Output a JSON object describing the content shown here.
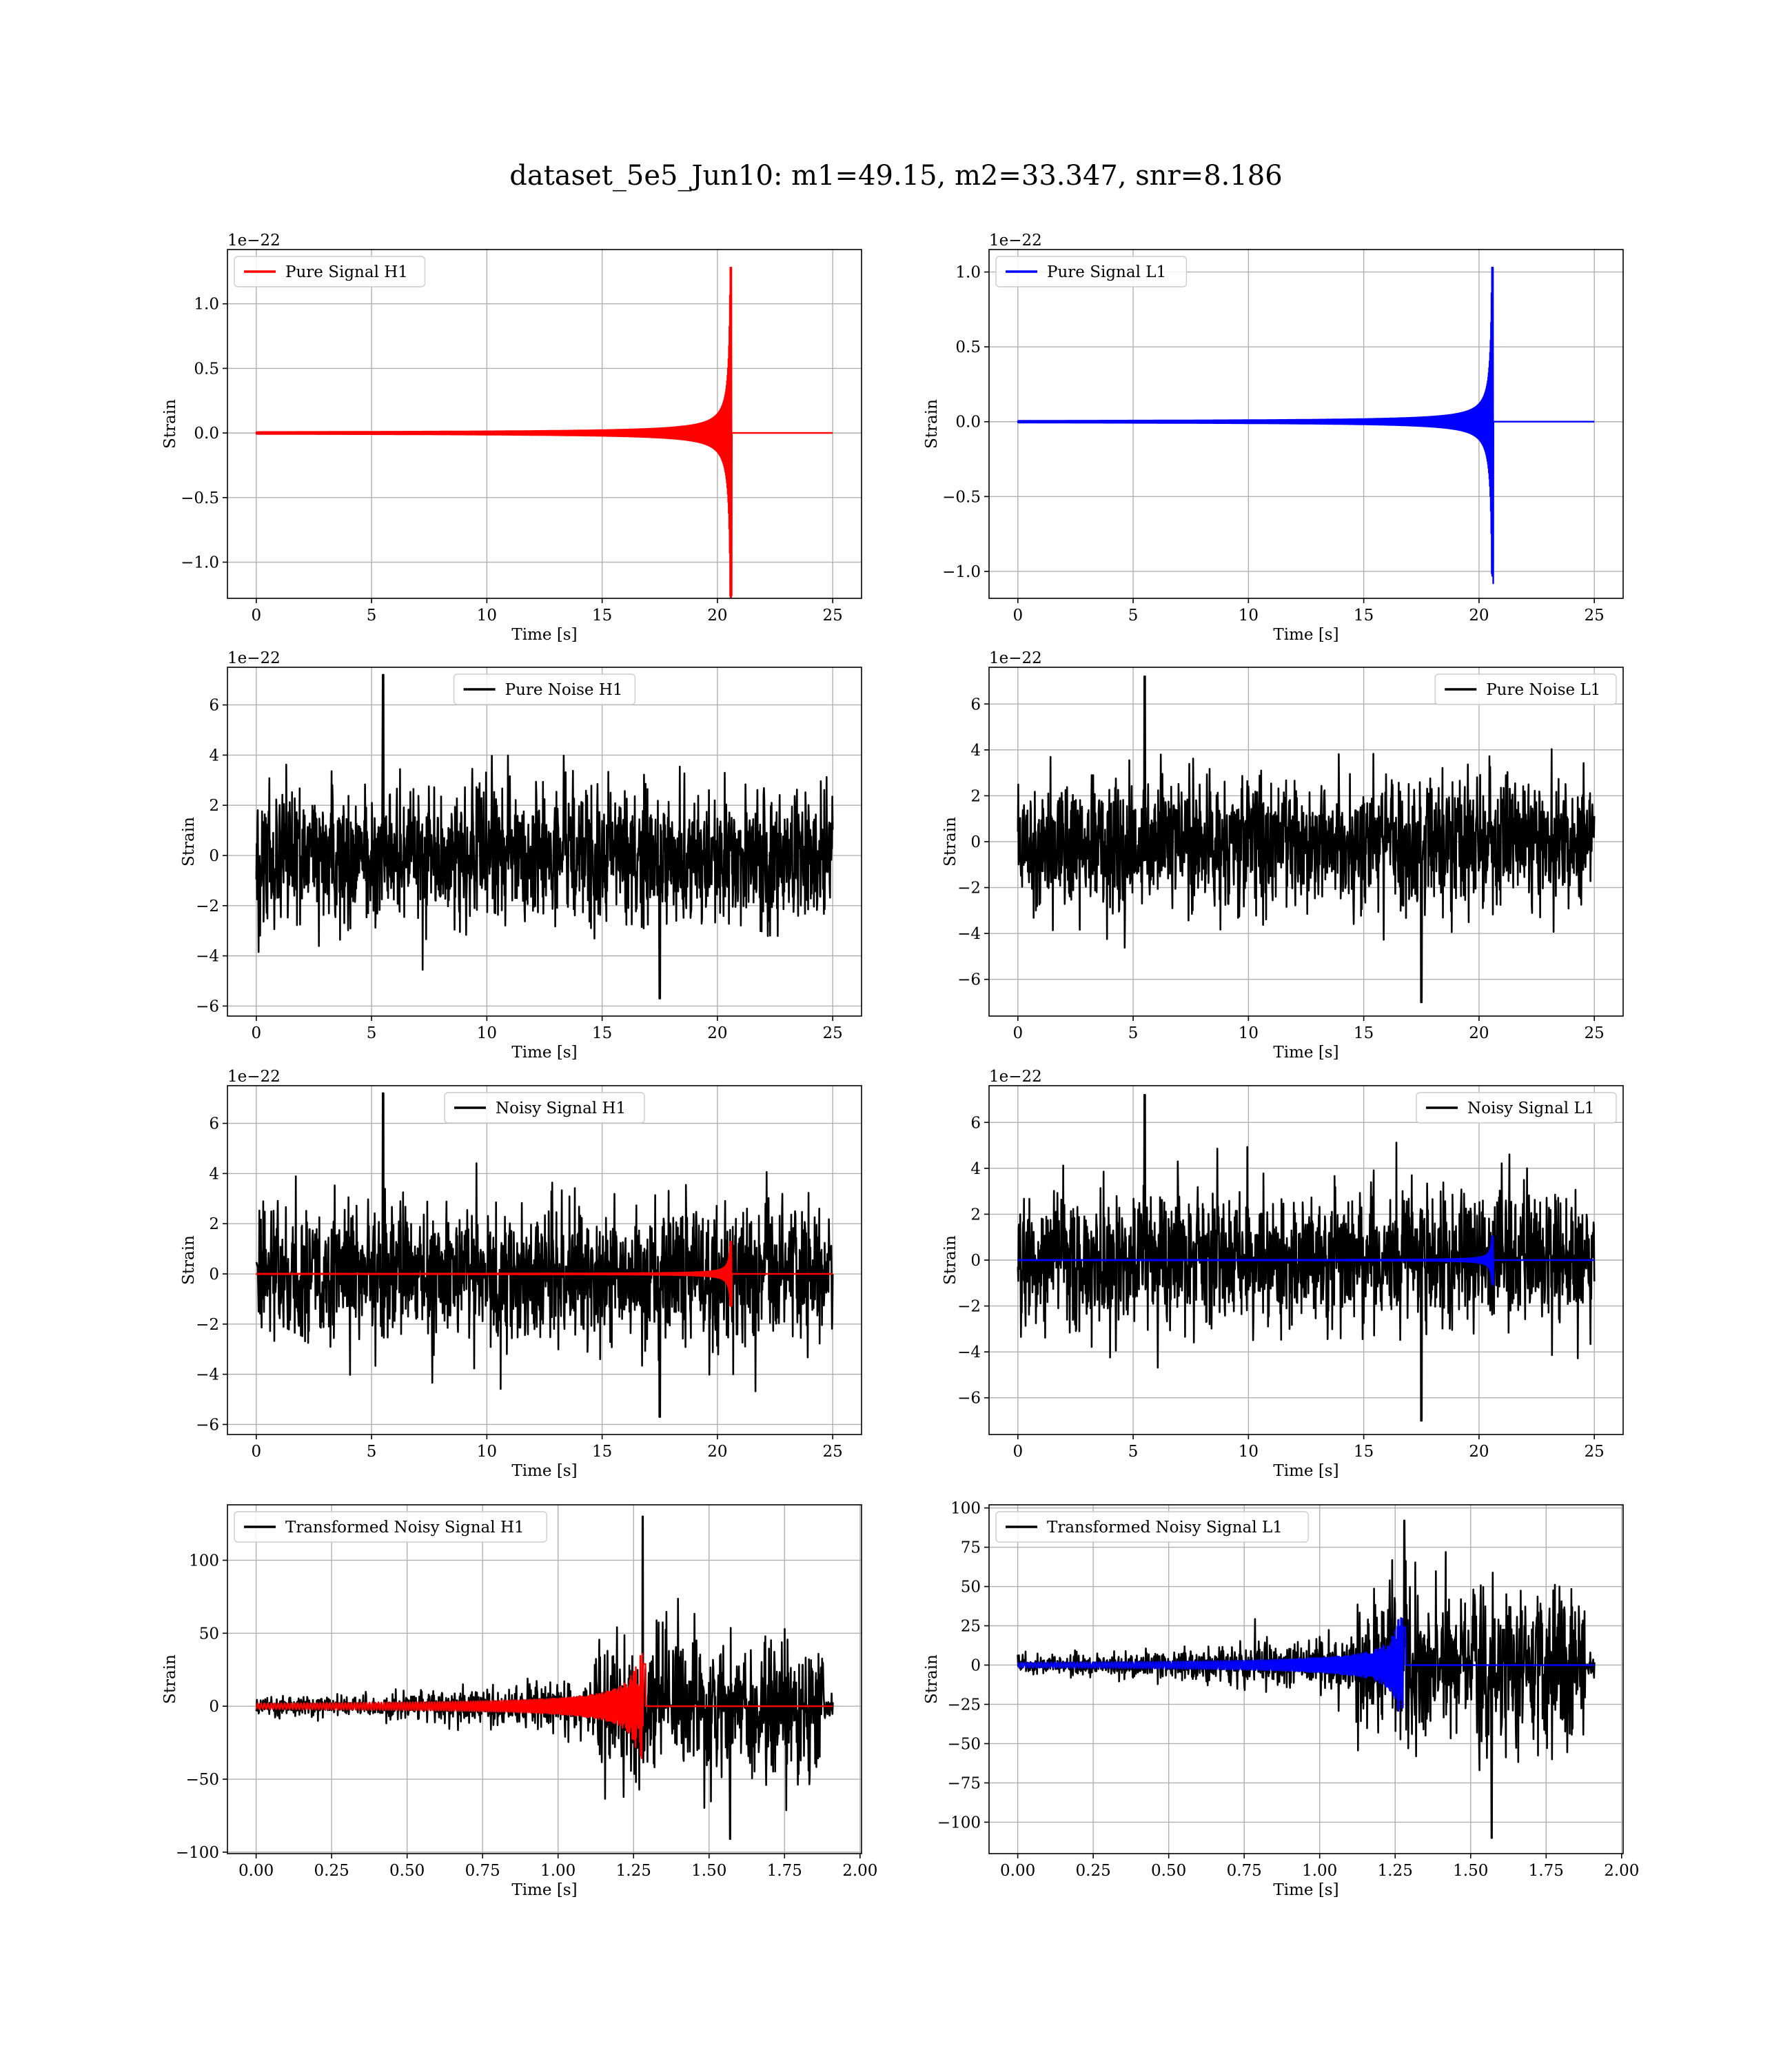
{
  "figure": {
    "suptitle": "dataset_5e5_Jun10: m1=49.15, m2=33.347, snr=8.186"
  },
  "chart_data": [
    {
      "id": "h1-signal",
      "type": "line",
      "legend_loc": "upper left",
      "xlabel": "Time [s]",
      "ylabel": "Strain",
      "offset_text": "1e−22",
      "xlim": [
        -1.25,
        26.25
      ],
      "ylim": [
        -1.28,
        1.42
      ],
      "xticks": [
        0,
        5,
        10,
        15,
        20,
        25
      ],
      "xtick_labels": [
        "0",
        "5",
        "10",
        "15",
        "20",
        "25"
      ],
      "yticks": [
        -1.0,
        -0.5,
        0.0,
        0.5,
        1.0
      ],
      "ytick_labels": [
        "−1.0",
        "−0.5",
        "0.0",
        "0.5",
        "1.0"
      ],
      "series": [
        {
          "name": "Pure Signal H1",
          "color": "#ff0000",
          "kind": "chirp",
          "t0": 0,
          "t1": 25,
          "tc": 20.6,
          "amp": 1.28,
          "peak": 1.28,
          "peak_neg": -1.26
        }
      ]
    },
    {
      "id": "l1-signal",
      "type": "line",
      "legend_loc": "upper left",
      "xlabel": "Time [s]",
      "ylabel": "Strain",
      "offset_text": "1e−22",
      "xlim": [
        -1.25,
        26.25
      ],
      "ylim": [
        -1.18,
        1.15
      ],
      "xticks": [
        0,
        5,
        10,
        15,
        20,
        25
      ],
      "xtick_labels": [
        "0",
        "5",
        "10",
        "15",
        "20",
        "25"
      ],
      "yticks": [
        -1.0,
        -0.5,
        0.0,
        0.5,
        1.0
      ],
      "ytick_labels": [
        "−1.0",
        "−0.5",
        "0.0",
        "0.5",
        "1.0"
      ],
      "series": [
        {
          "name": "Pure Signal L1",
          "color": "#0000ff",
          "kind": "chirp",
          "t0": 0,
          "t1": 25,
          "tc": 20.6,
          "amp": 1.03,
          "peak": 1.03,
          "peak_neg": -1.08
        }
      ]
    },
    {
      "id": "h1-noise",
      "type": "line",
      "legend_loc": "upper center",
      "xlabel": "Time [s]",
      "ylabel": "Strain",
      "offset_text": "1e−22",
      "xlim": [
        -1.25,
        26.25
      ],
      "ylim": [
        -6.4,
        7.5
      ],
      "xticks": [
        0,
        5,
        10,
        15,
        20,
        25
      ],
      "xtick_labels": [
        "0",
        "5",
        "10",
        "15",
        "20",
        "25"
      ],
      "yticks": [
        -6,
        -4,
        -2,
        0,
        2,
        4,
        6
      ],
      "ytick_labels": [
        "−6",
        "−4",
        "−2",
        "0",
        "2",
        "4",
        "6"
      ],
      "series": [
        {
          "name": "Pure Noise H1",
          "color": "#000000",
          "kind": "noise",
          "t0": 0,
          "t1": 25,
          "sigma": 1.35,
          "max": 7.2,
          "min": -5.7
        }
      ]
    },
    {
      "id": "l1-noise",
      "type": "line",
      "legend_loc": "upper right",
      "xlabel": "Time [s]",
      "ylabel": "Strain",
      "offset_text": "1e−22",
      "xlim": [
        -1.25,
        26.25
      ],
      "ylim": [
        -7.6,
        7.6
      ],
      "xticks": [
        0,
        5,
        10,
        15,
        20,
        25
      ],
      "xtick_labels": [
        "0",
        "5",
        "10",
        "15",
        "20",
        "25"
      ],
      "yticks": [
        -6,
        -4,
        -2,
        0,
        2,
        4,
        6
      ],
      "ytick_labels": [
        "−6",
        "−4",
        "−2",
        "0",
        "2",
        "4",
        "6"
      ],
      "series": [
        {
          "name": "Pure Noise L1",
          "color": "#000000",
          "kind": "noise",
          "t0": 0,
          "t1": 25,
          "sigma": 1.45,
          "max": 7.2,
          "min": -7.0
        }
      ]
    },
    {
      "id": "h1-noisy",
      "type": "line",
      "legend_loc": "upper center",
      "xlabel": "Time [s]",
      "ylabel": "Strain",
      "offset_text": "1e−22",
      "xlim": [
        -1.25,
        26.25
      ],
      "ylim": [
        -6.4,
        7.5
      ],
      "xticks": [
        0,
        5,
        10,
        15,
        20,
        25
      ],
      "xtick_labels": [
        "0",
        "5",
        "10",
        "15",
        "20",
        "25"
      ],
      "yticks": [
        -6,
        -4,
        -2,
        0,
        2,
        4,
        6
      ],
      "ytick_labels": [
        "−6",
        "−4",
        "−2",
        "0",
        "2",
        "4",
        "6"
      ],
      "series": [
        {
          "name": "Noisy Signal H1",
          "color": "#000000",
          "kind": "noise",
          "t0": 0,
          "t1": 25,
          "sigma": 1.35,
          "max": 7.2,
          "min": -5.7
        },
        {
          "name": "",
          "color": "#ff0000",
          "kind": "chirp",
          "t0": 0,
          "t1": 25,
          "tc": 20.6,
          "amp": 1.28,
          "peak": 1.28,
          "peak_neg": -1.26
        }
      ]
    },
    {
      "id": "l1-noisy",
      "type": "line",
      "legend_loc": "upper right",
      "xlabel": "Time [s]",
      "ylabel": "Strain",
      "offset_text": "1e−22",
      "xlim": [
        -1.25,
        26.25
      ],
      "ylim": [
        -7.6,
        7.6
      ],
      "xticks": [
        0,
        5,
        10,
        15,
        20,
        25
      ],
      "xtick_labels": [
        "0",
        "5",
        "10",
        "15",
        "20",
        "25"
      ],
      "yticks": [
        -6,
        -4,
        -2,
        0,
        2,
        4,
        6
      ],
      "ytick_labels": [
        "−6",
        "−4",
        "−2",
        "0",
        "2",
        "4",
        "6"
      ],
      "series": [
        {
          "name": "Noisy Signal L1",
          "color": "#000000",
          "kind": "noise",
          "t0": 0,
          "t1": 25,
          "sigma": 1.45,
          "max": 7.2,
          "min": -7.0
        },
        {
          "name": "",
          "color": "#0000ff",
          "kind": "chirp",
          "t0": 0,
          "t1": 25,
          "tc": 20.6,
          "amp": 1.03,
          "peak": 1.03,
          "peak_neg": -1.08
        }
      ]
    },
    {
      "id": "h1-transformed",
      "type": "line",
      "legend_loc": "upper left",
      "xlabel": "Time [s]",
      "ylabel": "Strain",
      "offset_text": "",
      "xlim": [
        -0.095,
        2.005
      ],
      "ylim": [
        -101,
        138
      ],
      "xticks": [
        0,
        0.25,
        0.5,
        0.75,
        1.0,
        1.25,
        1.5,
        1.75,
        2.0
      ],
      "xtick_labels": [
        "0.00",
        "0.25",
        "0.50",
        "0.75",
        "1.00",
        "1.25",
        "1.50",
        "1.75",
        "2.00"
      ],
      "yticks": [
        -100,
        -50,
        0,
        50,
        100
      ],
      "ytick_labels": [
        "−100",
        "−50",
        "0",
        "50",
        "100"
      ],
      "series": [
        {
          "name": "Transformed Noisy Signal H1",
          "color": "#000000",
          "kind": "tnoise",
          "t0": 0,
          "t1": 1.91,
          "onset": 1.12,
          "max": 130,
          "min": -91
        },
        {
          "name": "",
          "color": "#ff0000",
          "kind": "tchirp",
          "t0": 0,
          "t1": 1.91,
          "tc": 1.285,
          "amp": 36
        }
      ]
    },
    {
      "id": "l1-transformed",
      "type": "line",
      "legend_loc": "upper left",
      "xlabel": "Time [s]",
      "ylabel": "Strain",
      "offset_text": "",
      "xlim": [
        -0.095,
        2.005
      ],
      "ylim": [
        -120,
        102
      ],
      "xticks": [
        0,
        0.25,
        0.5,
        0.75,
        1.0,
        1.25,
        1.5,
        1.75,
        2.0
      ],
      "xtick_labels": [
        "0.00",
        "0.25",
        "0.50",
        "0.75",
        "1.00",
        "1.25",
        "1.50",
        "1.75",
        "2.00"
      ],
      "yticks": [
        -100,
        -75,
        -50,
        -25,
        0,
        25,
        50,
        75,
        100
      ],
      "ytick_labels": [
        "−100",
        "−75",
        "−50",
        "−25",
        "0",
        "25",
        "50",
        "75",
        "100"
      ],
      "series": [
        {
          "name": "Transformed Noisy Signal L1",
          "color": "#000000",
          "kind": "tnoise",
          "t0": 0,
          "t1": 1.91,
          "onset": 1.12,
          "max": 92,
          "min": -110
        },
        {
          "name": "",
          "color": "#0000ff",
          "kind": "tchirp",
          "t0": 0,
          "t1": 1.91,
          "tc": 1.28,
          "amp": 30
        }
      ]
    }
  ]
}
